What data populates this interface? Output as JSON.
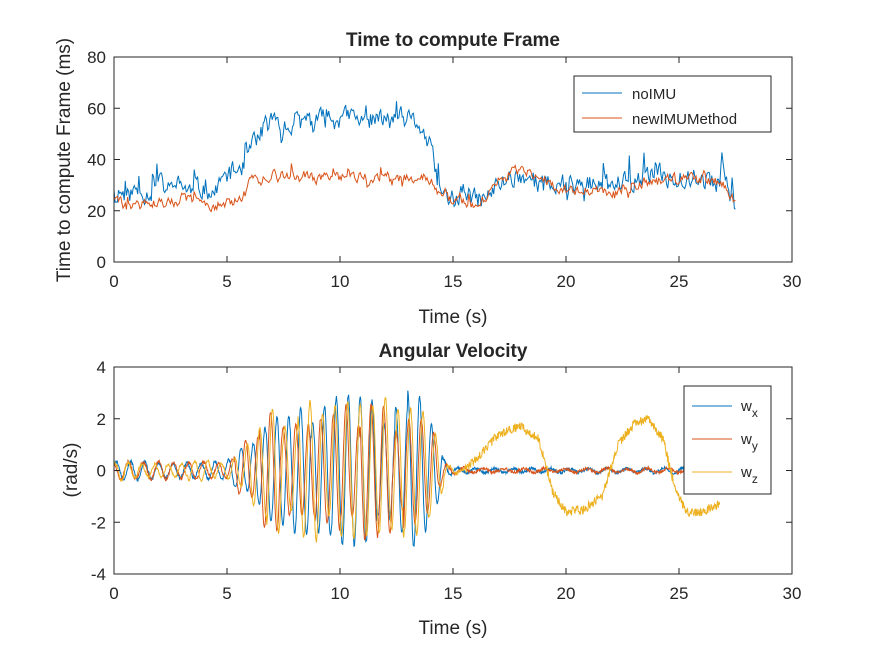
{
  "chart_data": [
    {
      "type": "line",
      "title": "Time to compute Frame",
      "xlabel": "Time (s)",
      "ylabel": "Time to compute Frame (ms)",
      "xlim": [
        0,
        30
      ],
      "ylim": [
        0,
        80
      ],
      "xticks": [
        0,
        5,
        10,
        15,
        20,
        25,
        30
      ],
      "yticks": [
        0,
        20,
        40,
        60,
        80
      ],
      "grid": false,
      "legend_position": "top-right",
      "series": [
        {
          "name": "noIMU",
          "color": "#0072BD",
          "x": [
            0,
            0.5,
            1,
            1.5,
            2,
            2.5,
            3,
            3.5,
            4,
            4.5,
            5,
            5.5,
            6,
            6.5,
            7,
            7.5,
            8,
            8.5,
            9,
            9.5,
            10,
            10.5,
            11,
            11.5,
            12,
            12.5,
            13,
            13.5,
            14,
            14.5,
            15,
            15.5,
            16,
            16.5,
            17,
            17.5,
            18,
            18.5,
            19,
            19.5,
            20,
            20.5,
            21,
            21.5,
            22,
            22.5,
            23,
            23.5,
            24,
            24.5,
            25,
            25.5,
            26,
            26.5,
            27,
            27.5
          ],
          "y": [
            30,
            26,
            28,
            27,
            30,
            28,
            30,
            27,
            29,
            27,
            34,
            36,
            42,
            52,
            55,
            54,
            52,
            56,
            55,
            56,
            55,
            57,
            54,
            56,
            55,
            56,
            55,
            54,
            44,
            25,
            26,
            27,
            24,
            25,
            30,
            33,
            34,
            32,
            30,
            30,
            32,
            30,
            30,
            29,
            31,
            30,
            32,
            33,
            34,
            33,
            34,
            33,
            32,
            31,
            30,
            24
          ],
          "noise": 6.5,
          "seed": 11
        },
        {
          "name": "newIMUMethod",
          "color": "#D95319",
          "x": [
            0,
            0.5,
            1,
            1.5,
            2,
            2.5,
            3,
            3.5,
            4,
            4.5,
            5,
            5.5,
            6,
            6.5,
            7,
            7.5,
            8,
            8.5,
            9,
            9.5,
            10,
            10.5,
            11,
            11.5,
            12,
            12.5,
            13,
            13.5,
            14,
            14.5,
            15,
            15.5,
            16,
            16.5,
            17,
            17.5,
            18,
            18.5,
            19,
            19.5,
            20,
            20.5,
            21,
            21.5,
            22,
            22.5,
            23,
            23.5,
            24,
            24.5,
            25,
            25.5,
            26,
            26.5,
            27,
            27.5
          ],
          "y": [
            25,
            22,
            22,
            23,
            23,
            22,
            25,
            24,
            23,
            22,
            23,
            24,
            31,
            32,
            34,
            34,
            33,
            33,
            32,
            33,
            33,
            33,
            34,
            32,
            33,
            32,
            33,
            32,
            32,
            25,
            24,
            23,
            22,
            26,
            32,
            34,
            35,
            34,
            33,
            30,
            28,
            28,
            28,
            28,
            27,
            28,
            30,
            31,
            32,
            32,
            33,
            33,
            32,
            31,
            30,
            22
          ],
          "noise": 3.2,
          "seed": 29
        }
      ]
    },
    {
      "type": "line",
      "title": "Angular Velocity",
      "xlabel": "Time (s)",
      "ylabel": "(rad/s)",
      "xlim": [
        0,
        30
      ],
      "ylim": [
        -4,
        4
      ],
      "xticks": [
        0,
        5,
        10,
        15,
        20,
        25,
        30
      ],
      "yticks": [
        -4,
        -2,
        0,
        2,
        4
      ],
      "grid": false,
      "legend_position": "top-right",
      "series": [
        {
          "name": "w",
          "subscript": "x",
          "color": "#0072BD",
          "x": [
            0,
            2,
            4,
            5,
            5.8,
            6.5,
            7.5,
            8.5,
            9.5,
            10.5,
            11.5,
            12.5,
            13.5,
            14.2,
            14.8,
            16,
            20,
            25,
            27.5
          ],
          "amplitude": [
            0.35,
            0.3,
            0.3,
            0.35,
            1.0,
            2.0,
            2.2,
            2.1,
            2.3,
            2.4,
            2.2,
            2.5,
            2.3,
            1.2,
            0.2,
            0.08,
            0.08,
            0.08,
            0.08
          ],
          "frequency_hz": [
            1.6,
            1.6,
            1.6,
            1.7,
            1.9,
            1.9,
            1.9,
            1.9,
            1.9,
            1.9,
            1.9,
            1.9,
            1.9,
            1.9,
            1.6,
            1.2,
            1.2,
            1.2,
            1.2
          ],
          "phase": 0.3,
          "t_end": 27.5,
          "seed": 5
        },
        {
          "name": "w",
          "subscript": "y",
          "color": "#D95319",
          "x": [
            0,
            2,
            4,
            5,
            5.8,
            6.5,
            7.5,
            8.5,
            9.5,
            10.5,
            11.5,
            12.5,
            13.5,
            14.2,
            14.8,
            16,
            20,
            25,
            27.5
          ],
          "amplitude": [
            0.3,
            0.28,
            0.3,
            0.35,
            1.0,
            1.8,
            2.0,
            2.2,
            2.3,
            2.8,
            2.4,
            2.1,
            2.4,
            1.3,
            0.2,
            0.08,
            0.08,
            0.08,
            0.08
          ],
          "frequency_hz": [
            1.5,
            1.5,
            1.5,
            1.6,
            1.8,
            1.8,
            1.8,
            1.8,
            1.8,
            1.8,
            1.8,
            1.8,
            1.8,
            1.8,
            1.5,
            1.1,
            1.1,
            1.1,
            1.1
          ],
          "phase": 1.7,
          "t_end": 27.5,
          "seed": 17
        },
        {
          "name": "w",
          "subscript": "z",
          "color": "#EDB120",
          "x": [
            0,
            2,
            4,
            5,
            5.8,
            6.5,
            7.5,
            8.5,
            9.5,
            10.5,
            11.5,
            12.5,
            13.5,
            14.2,
            14.8,
            15.5
          ],
          "amplitude": [
            0.35,
            0.3,
            0.35,
            0.4,
            1.0,
            1.8,
            2.0,
            2.2,
            2.4,
            2.6,
            2.4,
            2.2,
            2.4,
            1.4,
            0.25,
            0.08
          ],
          "frequency_hz": [
            1.7,
            1.7,
            1.7,
            1.7,
            1.8,
            1.8,
            1.8,
            1.8,
            1.8,
            1.8,
            1.8,
            1.8,
            1.8,
            1.8,
            1.6,
            1.4
          ],
          "phase": 0.9,
          "baseline_x": [
            15.5,
            16.2,
            17.0,
            18.0,
            18.8,
            19.4,
            20.0,
            20.8,
            21.6,
            22.3,
            23.0,
            23.6,
            24.3,
            24.8,
            25.3,
            26.0,
            26.8
          ],
          "baseline_y": [
            0.0,
            0.6,
            1.4,
            1.7,
            1.2,
            -0.8,
            -1.6,
            -1.5,
            -1.0,
            1.0,
            1.8,
            2.0,
            1.2,
            -0.6,
            -1.6,
            -1.6,
            -1.3
          ],
          "t_end": 26.8,
          "seed": 41
        }
      ]
    }
  ]
}
